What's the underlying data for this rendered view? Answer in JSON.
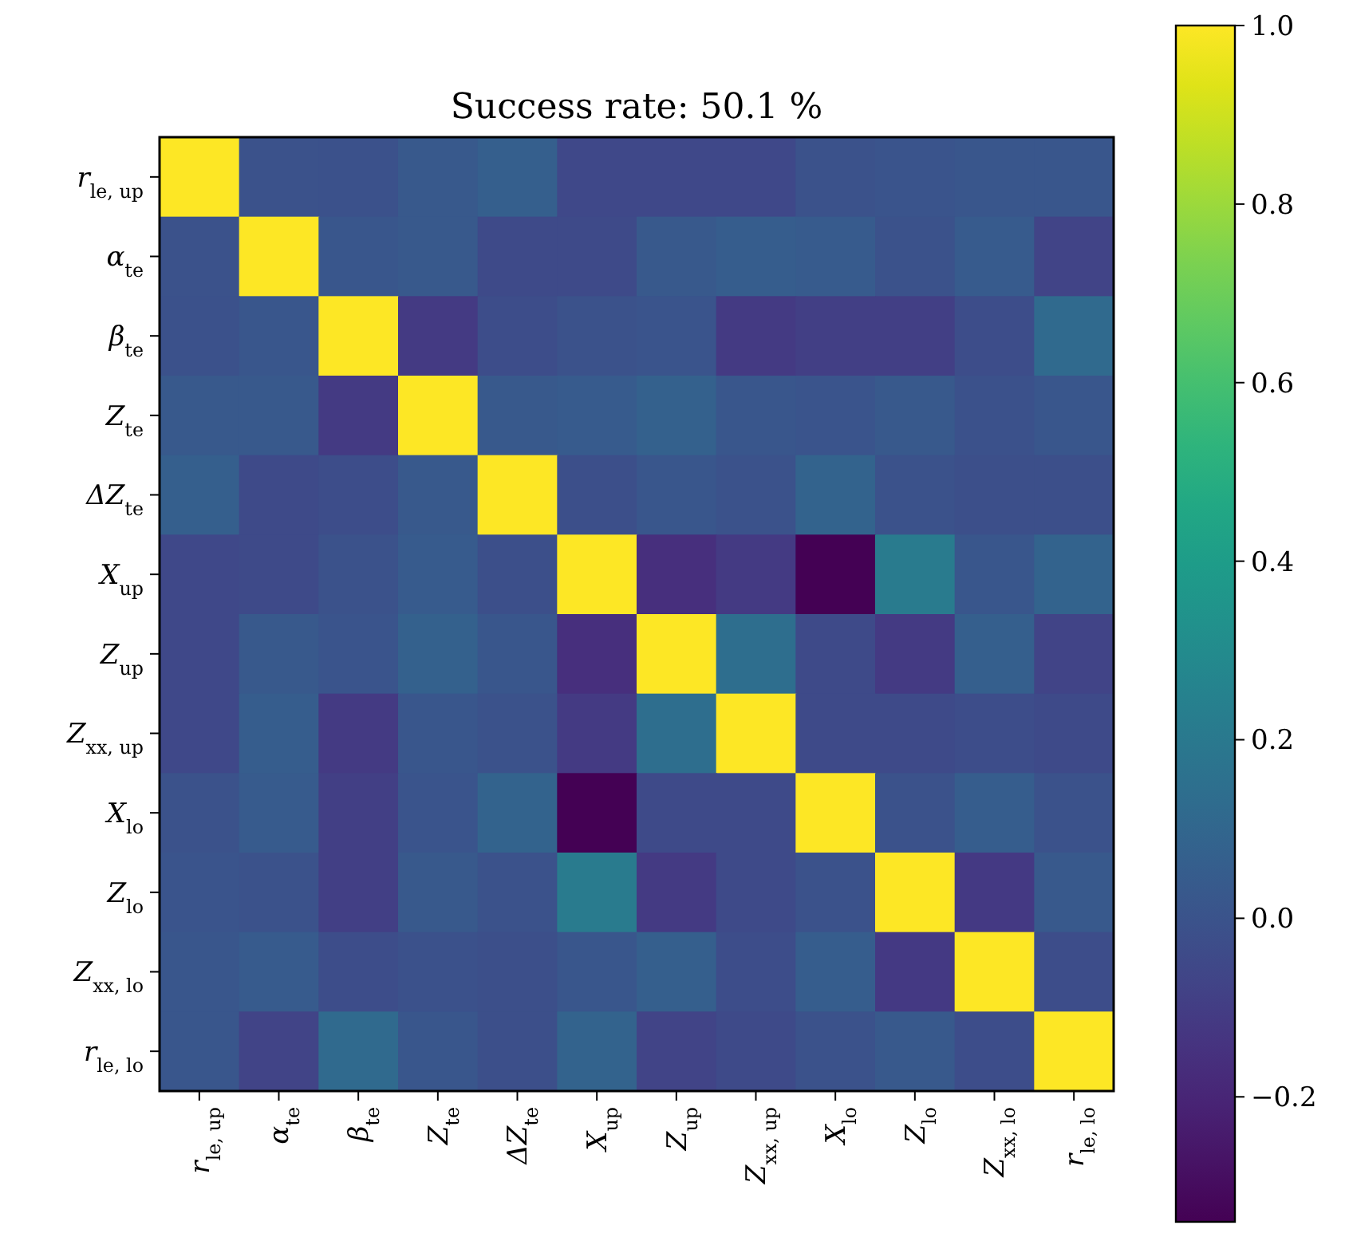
{
  "chart_data": {
    "type": "heatmap",
    "title": "Success rate: 50.1 %",
    "categories": [
      "r$_{le, up}$",
      "α$_{te}$",
      "β$_{te}$",
      "Z$_{te}$",
      "ΔZ$_{te}$",
      "X$_{up}$",
      "Z$_{up}$",
      "Z$_{xx, up}$",
      "X$_{lo}$",
      "Z$_{lo}$",
      "Z$_{xx, lo}$",
      "r$_{le, lo}$"
    ],
    "y_categories": [
      "r$_{le, up}$",
      "α$_{te}$",
      "β$_{te}$",
      "Z$_{te}$",
      "ΔZ$_{te}$",
      "X$_{up}$",
      "Z$_{up}$",
      "Z$_{xx, up}$",
      "X$_{lo}$",
      "Z$_{lo}$",
      "Z$_{xx, lo}$",
      "r$_{le, lo}$"
    ],
    "cells": [
      [
        1,
        0.0,
        -0.01,
        0.03,
        0.06,
        -0.05,
        -0.05,
        -0.05,
        0.0,
        0.01,
        0.02,
        0.02
      ],
      [
        0.0,
        1,
        0.02,
        0.03,
        -0.04,
        -0.04,
        0.03,
        0.05,
        0.04,
        0.0,
        0.04,
        -0.07
      ],
      [
        -0.01,
        0.02,
        1,
        -0.11,
        -0.03,
        0.0,
        0.01,
        -0.11,
        -0.09,
        -0.09,
        -0.03,
        0.12
      ],
      [
        0.03,
        0.03,
        -0.11,
        1,
        0.03,
        0.04,
        0.07,
        0.02,
        0.01,
        0.03,
        -0.01,
        0.02
      ],
      [
        0.06,
        -0.04,
        -0.03,
        0.03,
        1,
        -0.02,
        0.02,
        0.0,
        0.08,
        0.0,
        -0.02,
        -0.02
      ],
      [
        -0.05,
        -0.04,
        0.0,
        0.04,
        -0.02,
        1,
        -0.16,
        -0.11,
        -0.34,
        0.21,
        0.02,
        0.08
      ],
      [
        -0.05,
        0.03,
        0.01,
        0.07,
        0.02,
        -0.16,
        1,
        0.14,
        -0.04,
        -0.11,
        0.06,
        -0.07
      ],
      [
        -0.05,
        0.05,
        -0.11,
        0.02,
        0.0,
        -0.11,
        0.14,
        1,
        -0.04,
        -0.04,
        -0.03,
        -0.04
      ],
      [
        0.0,
        0.04,
        -0.09,
        0.01,
        0.08,
        -0.34,
        -0.04,
        -0.04,
        1,
        0.0,
        0.05,
        0.0
      ],
      [
        0.01,
        0.0,
        -0.09,
        0.03,
        0.0,
        0.21,
        -0.11,
        -0.04,
        0.0,
        1,
        -0.12,
        0.03
      ],
      [
        0.02,
        0.04,
        -0.03,
        -0.01,
        -0.02,
        0.02,
        0.06,
        -0.03,
        0.05,
        -0.12,
        1,
        -0.03
      ],
      [
        0.02,
        -0.07,
        0.12,
        0.02,
        -0.02,
        0.08,
        -0.07,
        -0.04,
        0.0,
        0.03,
        -0.03,
        1
      ]
    ],
    "clim": [
      -0.34,
      1.0
    ],
    "cticks": [
      {
        "value": -0.2,
        "label": "−0.2"
      },
      {
        "value": 0,
        "label": "0.0"
      },
      {
        "value": 0.2,
        "label": "0.2"
      },
      {
        "value": 0.4,
        "label": "0.4"
      },
      {
        "value": 0.6,
        "label": "0.6"
      },
      {
        "value": 0.8,
        "label": "0.8"
      },
      {
        "value": 1,
        "label": "1.0"
      }
    ]
  }
}
